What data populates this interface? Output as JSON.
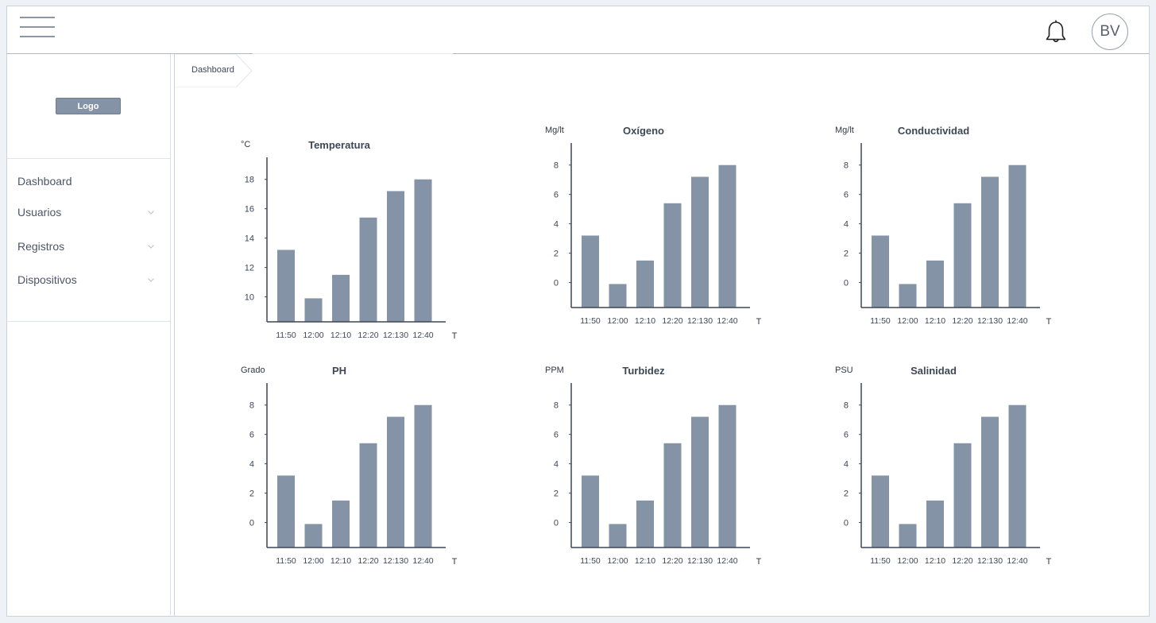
{
  "header": {
    "avatar_initials": "BV",
    "menu_icon": "hamburger-icon",
    "notification_icon": "bell-icon"
  },
  "sidebar": {
    "logo_label": "Logo",
    "items": [
      {
        "label": "Dashboard",
        "has_submenu": false
      },
      {
        "label": "Usuarios",
        "has_submenu": true
      },
      {
        "label": "Registros",
        "has_submenu": true
      },
      {
        "label": "Dispositivos",
        "has_submenu": true
      }
    ]
  },
  "breadcrumb": {
    "label": "Dashboard"
  },
  "colors": {
    "bar": "#8593a6",
    "axis": "#3d4756"
  },
  "chart_data": [
    {
      "type": "bar",
      "title": "Temperatura",
      "ylabel": "°C",
      "xlabel": "T",
      "categories": [
        "11:50",
        "12:00",
        "12:10",
        "12:20",
        "12:130",
        "12:40"
      ],
      "values": [
        13.2,
        9.9,
        11.5,
        15.4,
        17.2,
        18
      ],
      "yticks": [
        10,
        12,
        14,
        16,
        18
      ],
      "ylim": [
        8.3,
        19.5
      ]
    },
    {
      "type": "bar",
      "title": "Oxígeno",
      "ylabel": "Mg/lt",
      "xlabel": "T",
      "categories": [
        "11:50",
        "12:00",
        "12:10",
        "12:20",
        "12:130",
        "12:40"
      ],
      "values": [
        3.2,
        -0.1,
        1.5,
        5.4,
        7.2,
        8
      ],
      "yticks": [
        0,
        2,
        4,
        6,
        8
      ],
      "ylim": [
        -1.7,
        9.5
      ]
    },
    {
      "type": "bar",
      "title": "Conductividad",
      "ylabel": "Mg/lt",
      "xlabel": "T",
      "categories": [
        "11:50",
        "12:00",
        "12:10",
        "12:20",
        "12:130",
        "12:40"
      ],
      "values": [
        3.2,
        -0.1,
        1.5,
        5.4,
        7.2,
        8
      ],
      "yticks": [
        0,
        2,
        4,
        6,
        8
      ],
      "ylim": [
        -1.7,
        9.5
      ]
    },
    {
      "type": "bar",
      "title": "PH",
      "ylabel": "Grado",
      "xlabel": "T",
      "categories": [
        "11:50",
        "12:00",
        "12:10",
        "12:20",
        "12:130",
        "12:40"
      ],
      "values": [
        3.2,
        -0.1,
        1.5,
        5.4,
        7.2,
        8
      ],
      "yticks": [
        0,
        2,
        4,
        6,
        8
      ],
      "ylim": [
        -1.7,
        9.5
      ]
    },
    {
      "type": "bar",
      "title": "Turbidez",
      "ylabel": "PPM",
      "xlabel": "T",
      "categories": [
        "11:50",
        "12:00",
        "12:10",
        "12:20",
        "12:130",
        "12:40"
      ],
      "values": [
        3.2,
        -0.1,
        1.5,
        5.4,
        7.2,
        8
      ],
      "yticks": [
        0,
        2,
        4,
        6,
        8
      ],
      "ylim": [
        -1.7,
        9.5
      ]
    },
    {
      "type": "bar",
      "title": "Salinidad",
      "ylabel": "PSU",
      "xlabel": "T",
      "categories": [
        "11:50",
        "12:00",
        "12:10",
        "12:20",
        "12:130",
        "12:40"
      ],
      "values": [
        3.2,
        -0.1,
        1.5,
        5.4,
        7.2,
        8
      ],
      "yticks": [
        0,
        2,
        4,
        6,
        8
      ],
      "ylim": [
        -1.7,
        9.5
      ]
    }
  ]
}
